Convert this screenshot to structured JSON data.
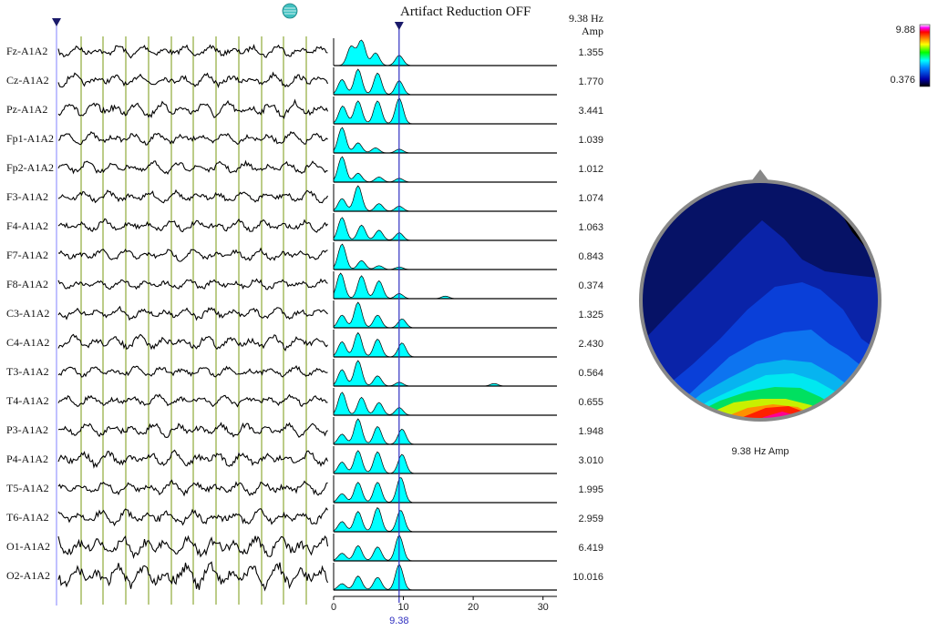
{
  "header": {
    "artifact_status": "Artifact Reduction OFF",
    "freq_header": "9.38 Hz",
    "amp_header": "Amp"
  },
  "colors": {
    "spectrum_fill": "#00ffff",
    "cursor": "#3030c0",
    "marker_lines": "#7a9a10",
    "trace": "#000000",
    "head_outline": "#888888"
  },
  "channels": [
    {
      "name": "Fz-A1A2",
      "amp": "1.355",
      "peaks": [
        [
          2.5,
          0.75
        ],
        [
          4,
          1.0
        ],
        [
          6,
          0.5
        ],
        [
          9.4,
          0.4
        ]
      ]
    },
    {
      "name": "Cz-A1A2",
      "amp": "1.770",
      "peaks": [
        [
          1.2,
          0.6
        ],
        [
          3.5,
          1.0
        ],
        [
          6.3,
          0.85
        ],
        [
          9.4,
          0.55
        ]
      ]
    },
    {
      "name": "Pz-A1A2",
      "amp": "3.441",
      "peaks": [
        [
          1.3,
          0.7
        ],
        [
          3.5,
          0.9
        ],
        [
          6.3,
          0.9
        ],
        [
          9.4,
          1.0
        ]
      ]
    },
    {
      "name": "Fp1-A1A2",
      "amp": "1.039",
      "peaks": [
        [
          1.2,
          1.0
        ],
        [
          3.5,
          0.4
        ],
        [
          6,
          0.2
        ],
        [
          9.4,
          0.15
        ]
      ]
    },
    {
      "name": "Fp2-A1A2",
      "amp": "1.012",
      "peaks": [
        [
          1.2,
          1.0
        ],
        [
          3.5,
          0.35
        ],
        [
          6.5,
          0.2
        ],
        [
          9.4,
          0.15
        ]
      ]
    },
    {
      "name": "F3-A1A2",
      "amp": "1.074",
      "peaks": [
        [
          1.2,
          0.5
        ],
        [
          3.5,
          1.0
        ],
        [
          6.5,
          0.3
        ],
        [
          9.4,
          0.2
        ]
      ]
    },
    {
      "name": "F4-A1A2",
      "amp": "1.063",
      "peaks": [
        [
          1.2,
          0.9
        ],
        [
          4,
          0.6
        ],
        [
          6.5,
          0.4
        ],
        [
          9.4,
          0.3
        ]
      ]
    },
    {
      "name": "F7-A1A2",
      "amp": "0.843",
      "peaks": [
        [
          1.2,
          1.0
        ],
        [
          4,
          0.35
        ],
        [
          6.5,
          0.15
        ],
        [
          9.4,
          0.1
        ]
      ]
    },
    {
      "name": "F8-A1A2",
      "amp": "0.374",
      "peaks": [
        [
          1,
          1.0
        ],
        [
          4,
          0.9
        ],
        [
          6.5,
          0.7
        ],
        [
          9.4,
          0.2
        ],
        [
          16,
          0.1
        ]
      ]
    },
    {
      "name": "C3-A1A2",
      "amp": "1.325",
      "peaks": [
        [
          1.2,
          0.5
        ],
        [
          3.5,
          1.0
        ],
        [
          6.3,
          0.5
        ],
        [
          9.8,
          0.35
        ]
      ]
    },
    {
      "name": "C4-A1A2",
      "amp": "2.430",
      "peaks": [
        [
          1.2,
          0.6
        ],
        [
          3.5,
          0.95
        ],
        [
          6.3,
          0.7
        ],
        [
          9.8,
          0.55
        ]
      ]
    },
    {
      "name": "T3-A1A2",
      "amp": "0.564",
      "peaks": [
        [
          1.2,
          0.65
        ],
        [
          3.5,
          1.0
        ],
        [
          6.3,
          0.4
        ],
        [
          9.4,
          0.15
        ],
        [
          23,
          0.1
        ]
      ]
    },
    {
      "name": "T4-A1A2",
      "amp": "0.655",
      "peaks": [
        [
          1.2,
          0.9
        ],
        [
          4,
          0.7
        ],
        [
          6.5,
          0.5
        ],
        [
          9.4,
          0.3
        ]
      ]
    },
    {
      "name": "P3-A1A2",
      "amp": "1.948",
      "peaks": [
        [
          1.2,
          0.4
        ],
        [
          3.5,
          1.0
        ],
        [
          6.3,
          0.7
        ],
        [
          9.8,
          0.6
        ]
      ]
    },
    {
      "name": "P4-A1A2",
      "amp": "3.010",
      "peaks": [
        [
          1.2,
          0.45
        ],
        [
          3.5,
          0.9
        ],
        [
          6.3,
          0.85
        ],
        [
          9.8,
          0.75
        ]
      ]
    },
    {
      "name": "T5-A1A2",
      "amp": "1.995",
      "peaks": [
        [
          1.2,
          0.35
        ],
        [
          3.5,
          0.8
        ],
        [
          6.3,
          0.8
        ],
        [
          9.6,
          1.0
        ]
      ]
    },
    {
      "name": "T6-A1A2",
      "amp": "2.959",
      "peaks": [
        [
          1.2,
          0.4
        ],
        [
          3.5,
          0.8
        ],
        [
          6.3,
          0.95
        ],
        [
          9.6,
          0.85
        ]
      ]
    },
    {
      "name": "O1-A1A2",
      "amp": "6.419",
      "peaks": [
        [
          1.2,
          0.3
        ],
        [
          3.5,
          0.6
        ],
        [
          6.3,
          0.55
        ],
        [
          9.4,
          1.0
        ]
      ]
    },
    {
      "name": "O2-A1A2",
      "amp": "10.016",
      "peaks": [
        [
          1.2,
          0.25
        ],
        [
          3.5,
          0.55
        ],
        [
          6.3,
          0.5
        ],
        [
          9.4,
          1.0
        ]
      ]
    }
  ],
  "chart_data": {
    "type": "area",
    "xlim": [
      0,
      32
    ],
    "x_ticks": [
      0,
      10,
      20,
      30
    ],
    "cursor_freq": 9.38,
    "cursor_label": "9.38"
  },
  "topomap": {
    "label": "9.38 Hz Amp",
    "scale_max": "9.88",
    "scale_min": "0.376"
  }
}
